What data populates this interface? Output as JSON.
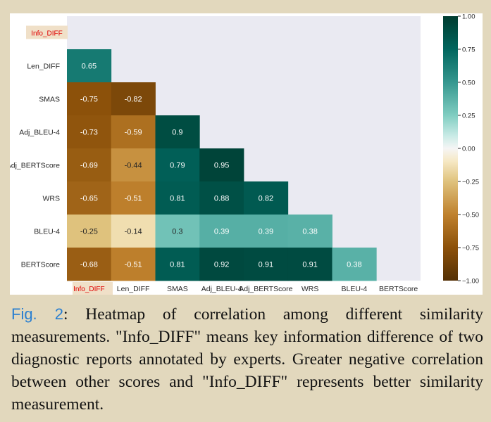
{
  "chart_data": {
    "type": "heatmap",
    "rows": [
      "Info_DIFF",
      "Len_DIFF",
      "SMAS",
      "Adj_BLEU-4",
      "Adj_BERTScore",
      "WRS",
      "BLEU-4",
      "BERTScore"
    ],
    "columns": [
      "Info_DIFF",
      "Len_DIFF",
      "SMAS",
      "Adj_BLEU-4",
      "Adj_BERTScore",
      "WRS",
      "BLEU-4",
      "BERTScore"
    ],
    "highlighted_label": "Info_DIFF",
    "highlight_color": "#e00000",
    "values": [
      [
        null,
        null,
        null,
        null,
        null,
        null,
        null,
        null
      ],
      [
        0.65,
        null,
        null,
        null,
        null,
        null,
        null,
        null
      ],
      [
        -0.75,
        -0.82,
        null,
        null,
        null,
        null,
        null,
        null
      ],
      [
        -0.73,
        -0.59,
        0.9,
        null,
        null,
        null,
        null,
        null
      ],
      [
        -0.69,
        -0.44,
        0.79,
        0.95,
        null,
        null,
        null,
        null
      ],
      [
        -0.65,
        -0.51,
        0.81,
        0.88,
        0.82,
        null,
        null,
        null
      ],
      [
        -0.25,
        -0.14,
        0.3,
        0.39,
        0.39,
        0.38,
        null,
        null
      ],
      [
        -0.68,
        -0.51,
        0.81,
        0.92,
        0.91,
        0.91,
        0.38,
        null
      ]
    ],
    "colorbar": {
      "min": -1.0,
      "max": 1.0,
      "ticks": [
        "1.00",
        "0.75",
        "0.50",
        "0.25",
        "0.00",
        "−0.25",
        "−0.50",
        "−0.75",
        "−1.00"
      ],
      "colormap": "BrBG"
    },
    "masked_upper_triangle": true
  },
  "caption": {
    "label": "Fig. 2",
    "text": ": Heatmap of correlation among different similarity measurements. \"Info_DIFF\" means key information difference of two diagnostic reports annotated by experts. Greater negative correlation between other scores and \"Info_DIFF\" represents better similarity measurement."
  }
}
